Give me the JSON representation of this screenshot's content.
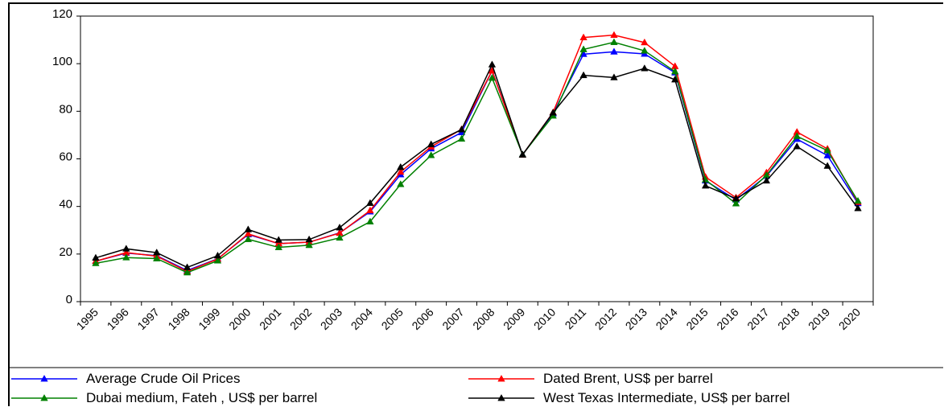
{
  "chart_data": {
    "type": "line",
    "title": "",
    "xlabel": "",
    "ylabel": "",
    "ylim": [
      0,
      120
    ],
    "yticks": [
      0,
      20,
      40,
      60,
      80,
      100,
      120
    ],
    "categories": [
      "1995",
      "1996",
      "1997",
      "1998",
      "1999",
      "2000",
      "2001",
      "2002",
      "2003",
      "2004",
      "2005",
      "2006",
      "2007",
      "2008",
      "2009",
      "2010",
      "2011",
      "2012",
      "2013",
      "2014",
      "2015",
      "2016",
      "2017",
      "2018",
      "2019",
      "2020"
    ],
    "grid": false,
    "legend_position": "bottom",
    "series": [
      {
        "name": "Average Crude Oil Prices",
        "color": "#0000ff",
        "values": [
          17.0,
          20.4,
          19.3,
          13.1,
          18.0,
          28.2,
          24.4,
          25.0,
          28.9,
          37.8,
          53.4,
          64.3,
          71.1,
          97.0,
          61.8,
          79.0,
          104.0,
          105.0,
          104.1,
          96.2,
          50.8,
          42.8,
          52.8,
          68.3,
          61.4,
          41.3
        ]
      },
      {
        "name": "Dated Brent, US$ per barrel",
        "color": "#ff0000",
        "values": [
          17.0,
          20.6,
          19.1,
          12.7,
          17.9,
          28.5,
          24.4,
          25.0,
          28.8,
          38.3,
          54.5,
          65.1,
          72.4,
          97.0,
          61.7,
          79.5,
          111.0,
          112.0,
          108.9,
          98.9,
          52.4,
          43.7,
          54.2,
          71.3,
          64.2,
          41.8
        ]
      },
      {
        "name": "Dubai medium, Fateh , US$ per barrel",
        "color": "#008000",
        "values": [
          16.1,
          18.5,
          18.1,
          12.2,
          17.2,
          26.2,
          22.8,
          23.7,
          26.8,
          33.6,
          49.3,
          61.5,
          68.4,
          94.0,
          61.8,
          78.1,
          106.0,
          109.0,
          105.4,
          96.7,
          51.2,
          41.2,
          53.1,
          69.5,
          63.5,
          42.3
        ]
      },
      {
        "name": "West Texas Intermediate, US$ per barrel",
        "color": "#000000",
        "values": [
          18.4,
          22.2,
          20.6,
          14.4,
          19.3,
          30.3,
          25.9,
          26.1,
          31.1,
          41.4,
          56.5,
          66.1,
          72.3,
          99.6,
          61.7,
          79.4,
          95.1,
          94.2,
          98.0,
          93.3,
          48.7,
          43.3,
          50.8,
          65.2,
          57.0,
          39.2
        ]
      }
    ]
  }
}
